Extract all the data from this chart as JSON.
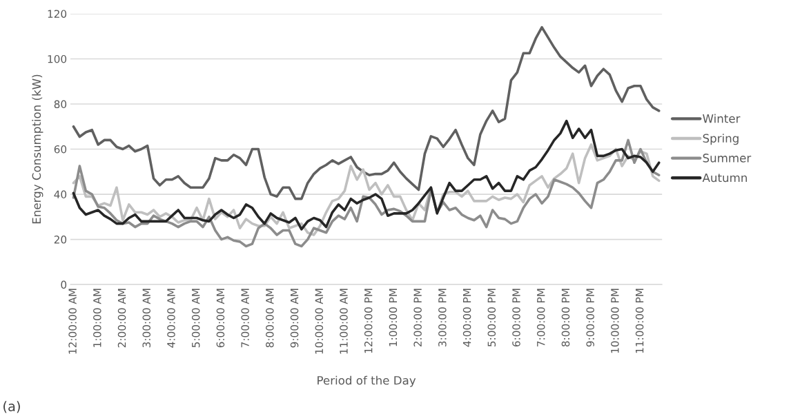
{
  "chart_data": {
    "type": "line",
    "xlabel": "Period of the Day",
    "ylabel": "Energy Consumption (kW)",
    "categories": [
      "12:00:00 AM",
      null,
      null,
      null,
      "1:00:00 AM",
      null,
      null,
      null,
      "2:00:00 AM",
      null,
      null,
      null,
      "3:00:00 AM",
      null,
      null,
      null,
      "4:00:00 AM",
      null,
      null,
      null,
      "5:00:00 AM",
      null,
      null,
      null,
      "6:00:00 AM",
      null,
      null,
      null,
      "7:00:00 AM",
      null,
      null,
      null,
      "8:00:00 AM",
      null,
      null,
      null,
      "9:00:00 AM",
      null,
      null,
      null,
      "10:00:00 AM",
      null,
      null,
      null,
      "11:00:00 AM",
      null,
      null,
      null,
      "12:00:00 PM",
      null,
      null,
      null,
      "1:00:00 PM",
      null,
      null,
      null,
      "2:00:00 PM",
      null,
      null,
      null,
      "3:00:00 PM",
      null,
      null,
      null,
      "4:00:00 PM",
      null,
      null,
      null,
      "5:00:00 PM",
      null,
      null,
      null,
      "6:00:00 PM",
      null,
      null,
      null,
      "7:00:00 PM",
      null,
      null,
      null,
      "8:00:00 PM",
      null,
      null,
      null,
      "9:00:00 PM",
      null,
      null,
      null,
      "10:00:00 PM",
      null,
      null,
      null,
      "11:00:00 PM",
      null,
      null,
      null
    ],
    "series": [
      {
        "name": "Winter",
        "color": "#606060",
        "values": [
          70,
          65.5,
          67.5,
          68.5,
          62,
          64,
          64,
          61,
          60,
          61.5,
          59,
          60,
          61.5,
          47,
          44,
          46.5,
          46.5,
          48,
          45,
          43,
          43,
          43,
          47,
          56,
          55,
          55,
          57.5,
          56,
          53,
          60,
          60,
          47.5,
          40,
          39,
          43,
          43,
          38,
          38,
          45,
          49,
          51.5,
          53,
          55,
          53.5,
          55,
          56.5,
          52,
          50,
          48.5,
          49,
          49,
          50.5,
          54,
          50,
          47,
          44.5,
          42,
          58,
          65.7,
          64.7,
          61,
          64.5,
          68.5,
          62,
          56,
          53,
          66.5,
          72.5,
          77,
          72,
          73.5,
          90.5,
          94,
          102.5,
          102.5,
          109,
          114,
          109.5,
          105,
          101,
          98.5,
          96,
          94,
          97,
          88,
          92.5,
          95.5,
          93,
          86,
          81,
          87,
          88,
          88,
          82,
          78.5,
          77
        ]
      },
      {
        "name": "Spring",
        "color": "#bfbfbf",
        "values": [
          45,
          48,
          39,
          39,
          35,
          36,
          35,
          43,
          28.5,
          35.5,
          32,
          32,
          31,
          33,
          30,
          31.5,
          30,
          27.5,
          28.5,
          28.5,
          34,
          28.5,
          38,
          29,
          32,
          30,
          33,
          25,
          29,
          27,
          26,
          26,
          30,
          27,
          32,
          25,
          26,
          27,
          23,
          22,
          26,
          32,
          37,
          38,
          41.5,
          52.5,
          46.5,
          51,
          42,
          45,
          40,
          44,
          39,
          39,
          33,
          28.5,
          36,
          33,
          43,
          32,
          40,
          41,
          41,
          39,
          41.5,
          37,
          37,
          37,
          39,
          37.5,
          38.5,
          38,
          40,
          36.5,
          44,
          46,
          48,
          43,
          47,
          49,
          51.5,
          58,
          45,
          56,
          62,
          55,
          56,
          57,
          60,
          52.5,
          57,
          55,
          59,
          58,
          48,
          46
        ]
      },
      {
        "name": "Summer",
        "color": "#8c8c8c",
        "values": [
          38.5,
          52.5,
          41.5,
          40,
          34.5,
          34,
          31.5,
          28.5,
          27,
          27.5,
          25.5,
          27,
          27,
          30.5,
          29,
          28,
          27,
          25.5,
          27,
          28,
          28,
          25.5,
          30,
          24,
          20,
          21,
          19.5,
          19,
          17,
          18,
          25,
          27,
          25,
          22,
          24,
          24,
          18,
          17,
          20,
          25,
          24,
          23,
          28,
          30.5,
          29,
          34,
          28,
          39,
          38.5,
          35.5,
          31,
          33,
          33.5,
          32.5,
          30.5,
          28,
          28,
          28,
          42,
          32,
          36.5,
          33,
          34,
          31,
          29.5,
          28.5,
          30.5,
          25.5,
          33,
          29.5,
          29,
          27,
          28,
          34,
          38,
          40,
          36,
          39,
          46.5,
          45.5,
          44.5,
          43,
          40.5,
          37,
          34,
          45,
          46.5,
          50,
          55,
          55,
          64,
          54,
          60,
          54,
          50,
          48.5
        ]
      },
      {
        "name": "Autumn",
        "color": "#262626",
        "values": [
          40.5,
          34,
          31,
          32,
          33,
          30.5,
          29,
          27,
          27,
          29.5,
          31,
          28,
          28,
          28,
          28,
          28,
          30.5,
          33,
          29.5,
          29.5,
          29.5,
          28.5,
          28,
          31,
          33,
          31,
          29.5,
          31,
          35.5,
          34,
          30,
          27,
          31.5,
          29.5,
          28.5,
          27.5,
          29.5,
          24.5,
          28,
          29.5,
          28.5,
          25.5,
          32,
          35.5,
          33,
          38,
          36,
          37.5,
          38.5,
          40,
          38,
          30.5,
          31.5,
          31.5,
          31.5,
          33,
          36,
          39.5,
          43,
          31.5,
          38.5,
          45,
          41.5,
          41.5,
          44,
          46.5,
          46.5,
          48,
          42.5,
          45,
          41.5,
          41.5,
          48,
          46.5,
          50.5,
          52,
          55.5,
          59.5,
          64,
          67,
          72.5,
          65,
          69,
          65,
          68.5,
          57,
          57,
          58,
          59.5,
          60,
          56,
          57,
          56.5,
          54,
          50,
          54
        ]
      }
    ],
    "ylim": [
      0,
      120
    ],
    "yticks": [
      0,
      20,
      40,
      60,
      80,
      100,
      120
    ],
    "grid": "y",
    "legend": "right",
    "line_style": "solid",
    "marker": "none",
    "annotations": [
      "(a)"
    ]
  }
}
